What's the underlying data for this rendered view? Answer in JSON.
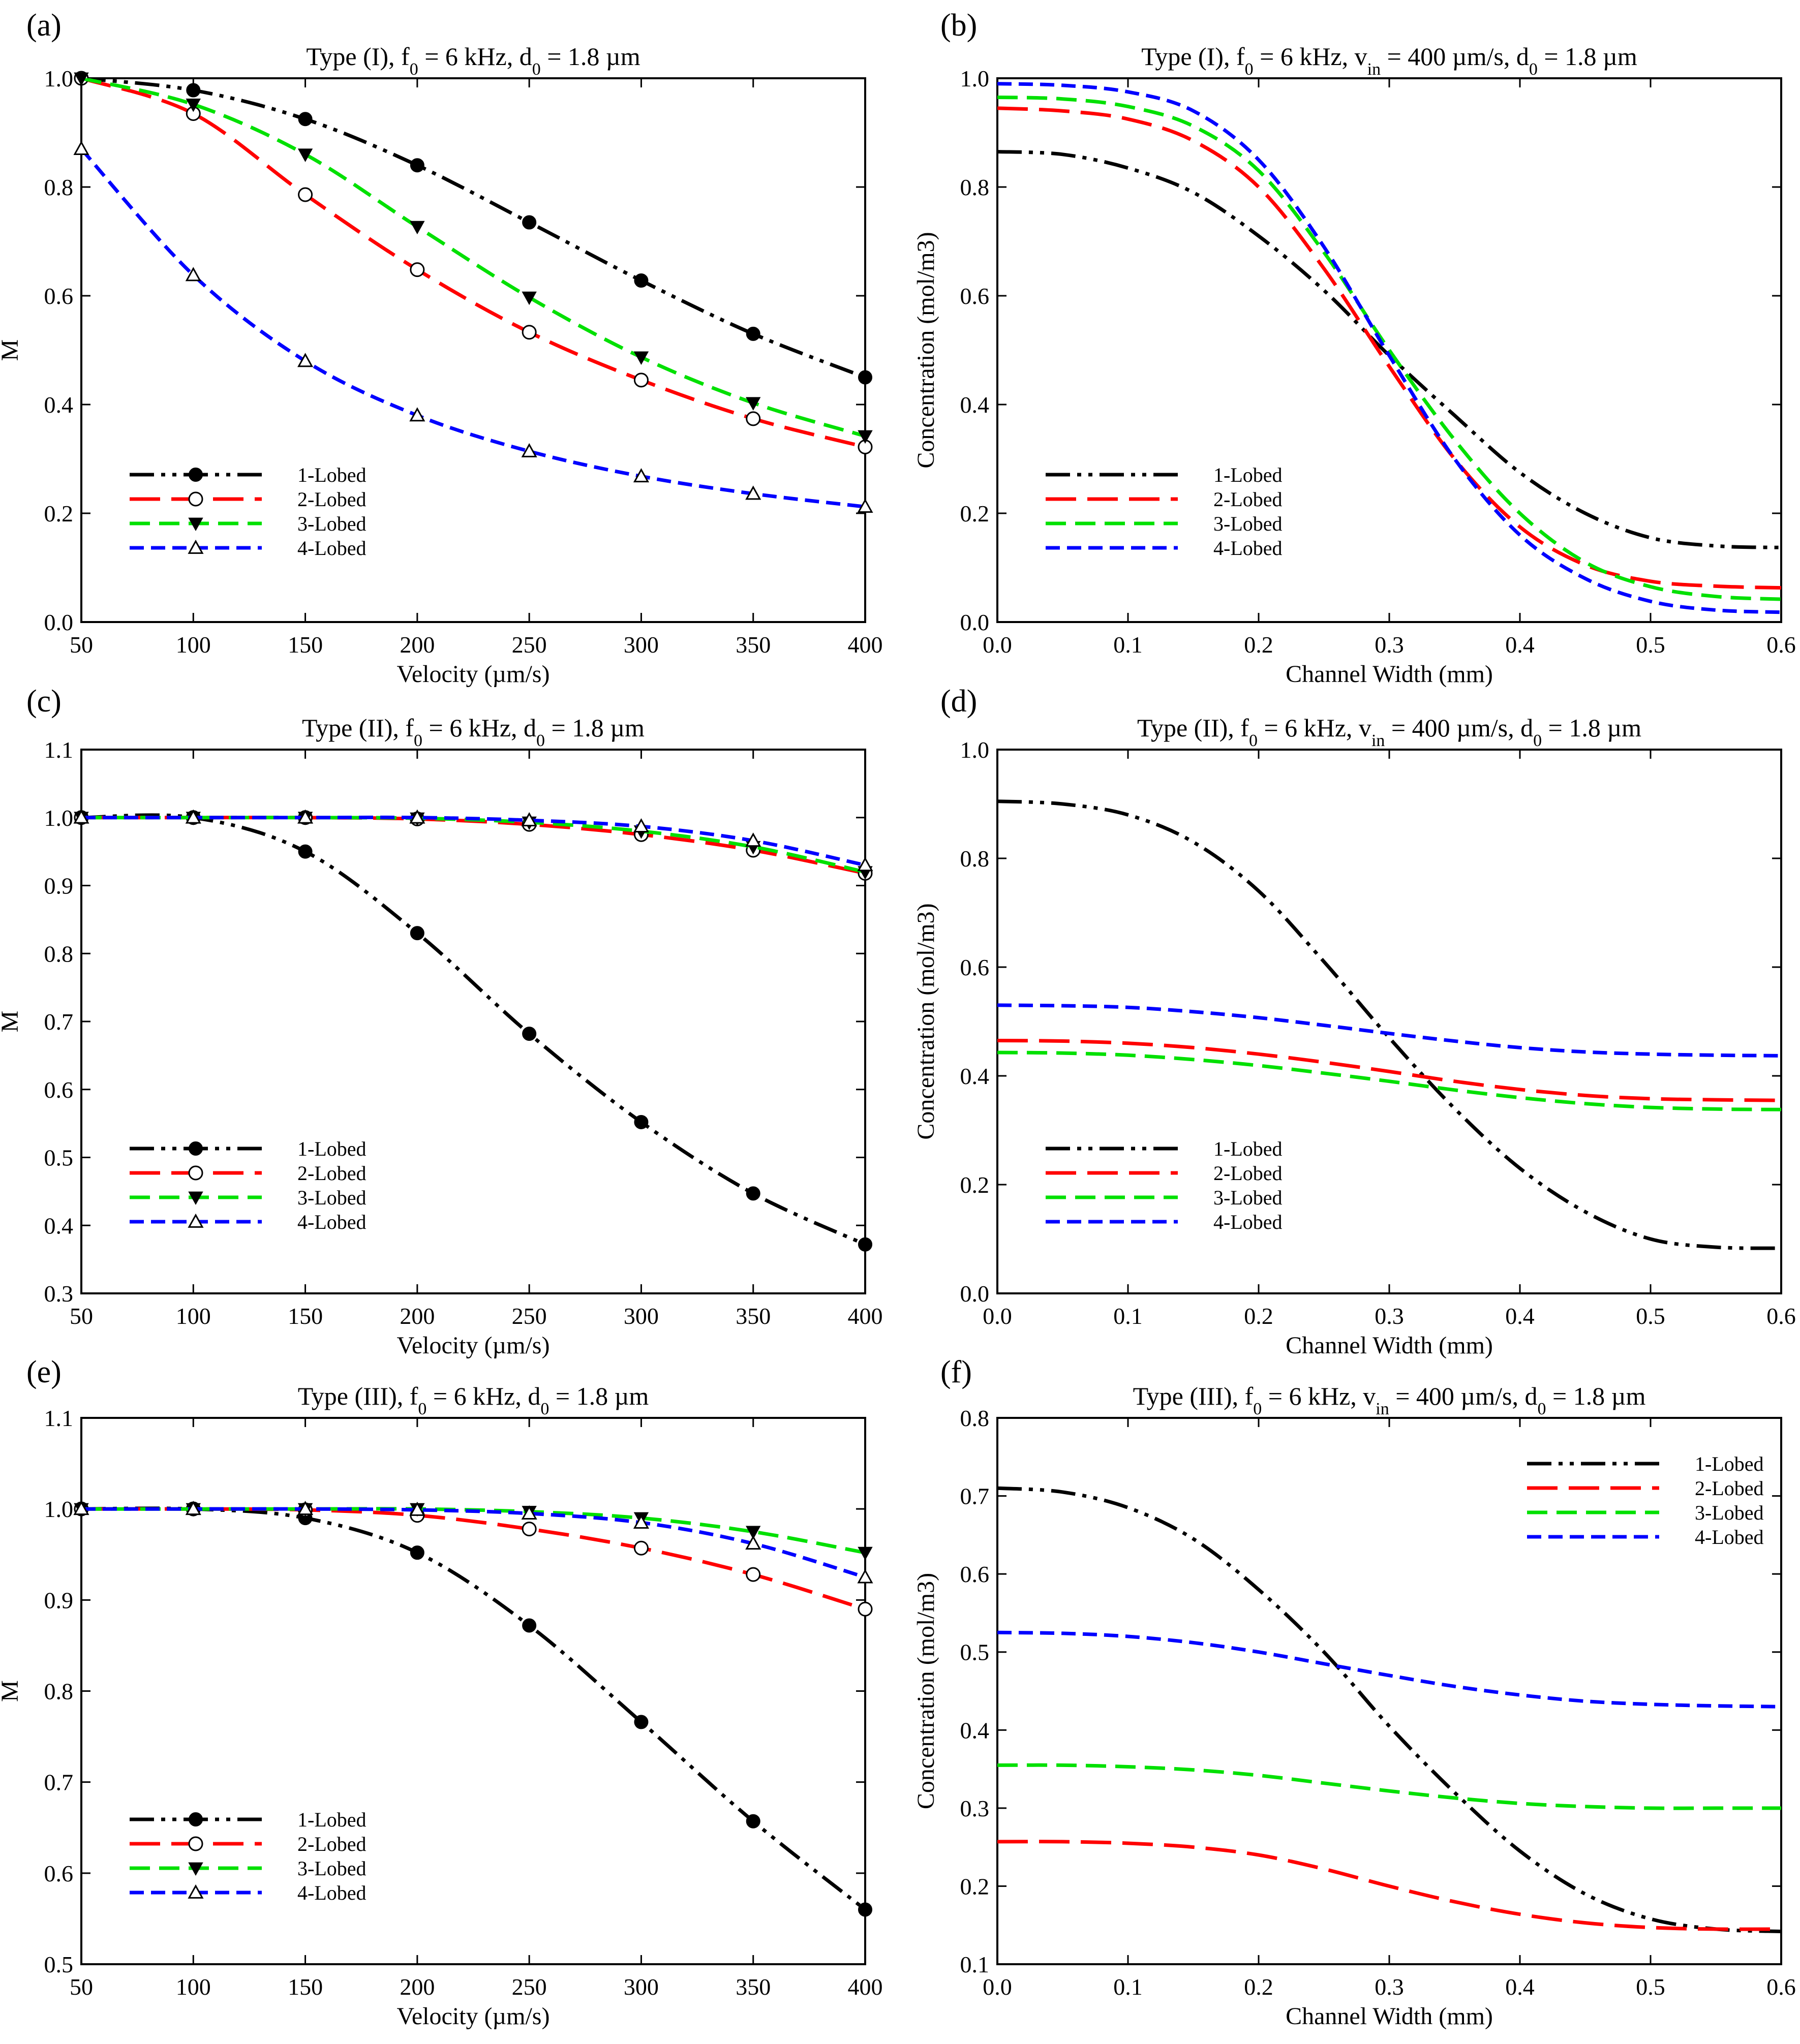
{
  "figure": {
    "colors": {
      "1-Lobed": "#000000",
      "2-Lobed": "#ff0000",
      "3-Lobed": "#00e000",
      "4-Lobed": "#0000ff"
    }
  },
  "chart_data": [
    {
      "panel_label": "(a)",
      "type": "line",
      "title": "Type (I), f0 = 6 kHz, d0 = 1.8 µm",
      "title_parts": [
        [
          "Type (I), f",
          "0",
          " = 6 kHz, d",
          "0",
          " = 1.8 µm"
        ]
      ],
      "xlabel": "Velocity (µm/s)",
      "ylabel": "M",
      "xlim": [
        50,
        400
      ],
      "ylim": [
        0.0,
        1.0
      ],
      "xticks": [
        50,
        100,
        150,
        200,
        250,
        300,
        350,
        400
      ],
      "xtick_labels": [
        "50",
        "100",
        "150",
        "200",
        "250",
        "300",
        "350",
        "400"
      ],
      "yticks": [
        0.0,
        0.2,
        0.4,
        0.6,
        0.8,
        1.0
      ],
      "ytick_labels": [
        "0.0",
        "0.2",
        "0.4",
        "0.6",
        "0.8",
        "1.0"
      ],
      "legend": "bottom-left",
      "x": [
        50,
        100,
        150,
        200,
        250,
        300,
        350,
        400
      ],
      "series": [
        {
          "name": "1-Lobed",
          "style": "dashdotdot",
          "marker": "filled-circle",
          "values": [
            1.0,
            0.978,
            0.925,
            0.84,
            0.735,
            0.628,
            0.53,
            0.45
          ]
        },
        {
          "name": "2-Lobed",
          "style": "longdash",
          "marker": "open-circle",
          "values": [
            1.0,
            0.935,
            0.786,
            0.648,
            0.533,
            0.445,
            0.374,
            0.322
          ]
        },
        {
          "name": "3-Lobed",
          "style": "dash",
          "marker": "filled-triangle-down",
          "values": [
            1.0,
            0.952,
            0.86,
            0.727,
            0.597,
            0.487,
            0.403,
            0.342
          ]
        },
        {
          "name": "4-Lobed",
          "style": "shortdash",
          "marker": "open-triangle-up",
          "values": [
            0.87,
            0.638,
            0.48,
            0.38,
            0.314,
            0.268,
            0.236,
            0.212
          ]
        }
      ]
    },
    {
      "panel_label": "(b)",
      "type": "line",
      "title": "Type (I), f0 = 6 kHz, vin = 400 µm/s, d0 = 1.8 µm",
      "title_parts": [
        [
          "Type (I), f",
          "0",
          " = 6 kHz, v",
          "in",
          " = 400 µm/s, d",
          "0",
          " = 1.8 µm"
        ]
      ],
      "xlabel": "Channel Width (mm)",
      "ylabel": "Concentration (mol/m3)",
      "xlim": [
        0.0,
        0.6
      ],
      "ylim": [
        0.0,
        1.0
      ],
      "xticks": [
        0.0,
        0.1,
        0.2,
        0.3,
        0.4,
        0.5,
        0.6
      ],
      "xtick_labels": [
        "0.0",
        "0.1",
        "0.2",
        "0.3",
        "0.4",
        "0.5",
        "0.6"
      ],
      "yticks": [
        0.0,
        0.2,
        0.4,
        0.6,
        0.8,
        1.0
      ],
      "ytick_labels": [
        "0.0",
        "0.2",
        "0.4",
        "0.6",
        "0.8",
        "1.0"
      ],
      "legend": "bottom-left",
      "x": [
        0.0,
        0.05,
        0.1,
        0.15,
        0.2,
        0.25,
        0.3,
        0.35,
        0.4,
        0.45,
        0.5,
        0.55,
        0.6
      ],
      "series": [
        {
          "name": "1-Lobed",
          "style": "dashdotdot",
          "values": [
            0.865,
            0.86,
            0.835,
            0.79,
            0.71,
            0.61,
            0.49,
            0.38,
            0.275,
            0.2,
            0.155,
            0.14,
            0.137
          ]
        },
        {
          "name": "2-Lobed",
          "style": "longdash",
          "values": [
            0.945,
            0.94,
            0.925,
            0.885,
            0.8,
            0.65,
            0.47,
            0.3,
            0.175,
            0.105,
            0.075,
            0.066,
            0.063
          ]
        },
        {
          "name": "3-Lobed",
          "style": "dash",
          "values": [
            0.965,
            0.962,
            0.948,
            0.912,
            0.83,
            0.68,
            0.5,
            0.335,
            0.2,
            0.11,
            0.065,
            0.047,
            0.042
          ]
        },
        {
          "name": "4-Lobed",
          "style": "shortdash",
          "values": [
            0.99,
            0.987,
            0.975,
            0.94,
            0.85,
            0.69,
            0.49,
            0.3,
            0.16,
            0.08,
            0.038,
            0.022,
            0.018
          ]
        }
      ]
    },
    {
      "panel_label": "(c)",
      "type": "line",
      "title": "Type (II), f0 = 6 kHz, d0 = 1.8 µm",
      "title_parts": [
        [
          "Type (II), f",
          "0",
          " = 6 kHz, d",
          "0",
          " = 1.8 µm"
        ]
      ],
      "xlabel": "Velocity (µm/s)",
      "ylabel": "M",
      "xlim": [
        50,
        400
      ],
      "ylim": [
        0.3,
        1.1
      ],
      "xticks": [
        50,
        100,
        150,
        200,
        250,
        300,
        350,
        400
      ],
      "xtick_labels": [
        "50",
        "100",
        "150",
        "200",
        "250",
        "300",
        "350",
        "400"
      ],
      "yticks": [
        0.3,
        0.4,
        0.5,
        0.6,
        0.7,
        0.8,
        0.9,
        1.0,
        1.1
      ],
      "ytick_labels": [
        "0.3",
        "0.4",
        "0.5",
        "0.6",
        "0.7",
        "0.8",
        "0.9",
        "1.0",
        "1.1"
      ],
      "legend": "bottom-left",
      "x": [
        50,
        100,
        150,
        200,
        250,
        300,
        350,
        400
      ],
      "series": [
        {
          "name": "1-Lobed",
          "style": "dashdotdot",
          "marker": "filled-circle",
          "values": [
            1.0,
            1.0,
            0.95,
            0.83,
            0.682,
            0.552,
            0.447,
            0.372
          ]
        },
        {
          "name": "2-Lobed",
          "style": "longdash",
          "marker": "open-circle",
          "values": [
            1.0,
            1.0,
            1.0,
            0.998,
            0.99,
            0.975,
            0.952,
            0.918
          ]
        },
        {
          "name": "3-Lobed",
          "style": "dash",
          "marker": "filled-triangle-down",
          "values": [
            1.0,
            1.0,
            1.0,
            0.999,
            0.993,
            0.98,
            0.957,
            0.92
          ]
        },
        {
          "name": "4-Lobed",
          "style": "shortdash",
          "marker": "open-triangle-up",
          "values": [
            1.0,
            1.0,
            1.0,
            1.0,
            0.996,
            0.987,
            0.966,
            0.93
          ]
        }
      ]
    },
    {
      "panel_label": "(d)",
      "type": "line",
      "title": "Type (II), f0 = 6 kHz, vin = 400 µm/s, d0 = 1.8 µm",
      "title_parts": [
        [
          "Type (II), f",
          "0",
          " = 6 kHz, v",
          "in",
          " = 400 µm/s, d",
          "0",
          " = 1.8 µm"
        ]
      ],
      "xlabel": "Channel Width (mm)",
      "ylabel": "Concentration (mol/m3)",
      "xlim": [
        0.0,
        0.6
      ],
      "ylim": [
        0.0,
        1.0
      ],
      "xticks": [
        0.0,
        0.1,
        0.2,
        0.3,
        0.4,
        0.5,
        0.6
      ],
      "xtick_labels": [
        "0.0",
        "0.1",
        "0.2",
        "0.3",
        "0.4",
        "0.5",
        "0.6"
      ],
      "yticks": [
        0.0,
        0.2,
        0.4,
        0.6,
        0.8,
        1.0
      ],
      "ytick_labels": [
        "0.0",
        "0.2",
        "0.4",
        "0.6",
        "0.8",
        "1.0"
      ],
      "legend": "bottom-left",
      "x": [
        0.0,
        0.05,
        0.1,
        0.15,
        0.2,
        0.25,
        0.3,
        0.35,
        0.4,
        0.45,
        0.5,
        0.55,
        0.6
      ],
      "series": [
        {
          "name": "1-Lobed",
          "style": "dashdotdot",
          "values": [
            0.905,
            0.9,
            0.88,
            0.83,
            0.74,
            0.61,
            0.47,
            0.34,
            0.23,
            0.15,
            0.1,
            0.085,
            0.083
          ]
        },
        {
          "name": "2-Lobed",
          "style": "longdash",
          "values": [
            0.465,
            0.464,
            0.46,
            0.452,
            0.44,
            0.425,
            0.408,
            0.39,
            0.375,
            0.364,
            0.358,
            0.356,
            0.355
          ]
        },
        {
          "name": "3-Lobed",
          "style": "dash",
          "values": [
            0.443,
            0.442,
            0.438,
            0.43,
            0.419,
            0.405,
            0.39,
            0.374,
            0.36,
            0.349,
            0.342,
            0.339,
            0.338
          ]
        },
        {
          "name": "4-Lobed",
          "style": "shortdash",
          "values": [
            0.53,
            0.529,
            0.526,
            0.518,
            0.507,
            0.493,
            0.478,
            0.464,
            0.452,
            0.444,
            0.44,
            0.438,
            0.437
          ]
        }
      ]
    },
    {
      "panel_label": "(e)",
      "type": "line",
      "title": "Type (III), f0 = 6 kHz, d0 = 1.8 µm",
      "title_parts": [
        [
          "Type (III), f",
          "0",
          " = 6 kHz, d",
          "0",
          " = 1.8 µm"
        ]
      ],
      "xlabel": "Velocity (µm/s)",
      "ylabel": "M",
      "xlim": [
        50,
        400
      ],
      "ylim": [
        0.5,
        1.1
      ],
      "xticks": [
        50,
        100,
        150,
        200,
        250,
        300,
        350,
        400
      ],
      "xtick_labels": [
        "50",
        "100",
        "150",
        "200",
        "250",
        "300",
        "350",
        "400"
      ],
      "yticks": [
        0.5,
        0.6,
        0.7,
        0.8,
        0.9,
        1.0,
        1.1
      ],
      "ytick_labels": [
        "0.5",
        "0.6",
        "0.7",
        "0.8",
        "0.9",
        "1.0",
        "1.1"
      ],
      "legend": "bottom-left",
      "x": [
        50,
        100,
        150,
        200,
        250,
        300,
        350,
        400
      ],
      "series": [
        {
          "name": "1-Lobed",
          "style": "dashdotdot",
          "marker": "filled-circle",
          "values": [
            1.0,
            1.0,
            0.99,
            0.952,
            0.872,
            0.766,
            0.657,
            0.56
          ]
        },
        {
          "name": "2-Lobed",
          "style": "longdash",
          "marker": "open-circle",
          "values": [
            1.0,
            1.0,
            0.999,
            0.993,
            0.978,
            0.957,
            0.928,
            0.89
          ]
        },
        {
          "name": "3-Lobed",
          "style": "dash",
          "marker": "filled-triangle-down",
          "values": [
            1.0,
            1.0,
            1.0,
            1.0,
            0.997,
            0.99,
            0.975,
            0.952
          ]
        },
        {
          "name": "4-Lobed",
          "style": "shortdash",
          "marker": "open-triangle-up",
          "values": [
            1.0,
            1.0,
            1.0,
            0.999,
            0.995,
            0.985,
            0.962,
            0.925
          ]
        }
      ]
    },
    {
      "panel_label": "(f)",
      "type": "line",
      "title": "Type (III), f0 = 6 kHz, vin = 400 µm/s, d0 = 1.8 µm",
      "title_parts": [
        [
          "Type (III), f",
          "0",
          " = 6 kHz, v",
          "in",
          " = 400 µm/s, d",
          "0",
          " = 1.8 µm"
        ]
      ],
      "xlabel": "Channel Width (mm)",
      "ylabel": "Concentration (mol/m3)",
      "xlim": [
        0.0,
        0.6
      ],
      "ylim": [
        0.1,
        0.8
      ],
      "xticks": [
        0.0,
        0.1,
        0.2,
        0.3,
        0.4,
        0.5,
        0.6
      ],
      "xtick_labels": [
        "0.0",
        "0.1",
        "0.2",
        "0.3",
        "0.4",
        "0.5",
        "0.6"
      ],
      "yticks": [
        0.1,
        0.2,
        0.3,
        0.4,
        0.5,
        0.6,
        0.7,
        0.8
      ],
      "ytick_labels": [
        "0.1",
        "0.2",
        "0.3",
        "0.4",
        "0.5",
        "0.6",
        "0.7",
        "0.8"
      ],
      "legend": "top-right",
      "x": [
        0.0,
        0.05,
        0.1,
        0.15,
        0.2,
        0.25,
        0.3,
        0.35,
        0.4,
        0.45,
        0.5,
        0.55,
        0.6
      ],
      "series": [
        {
          "name": "1-Lobed",
          "style": "dashdotdot",
          "values": [
            0.71,
            0.705,
            0.685,
            0.645,
            0.58,
            0.5,
            0.405,
            0.32,
            0.245,
            0.19,
            0.158,
            0.145,
            0.142
          ]
        },
        {
          "name": "2-Lobed",
          "style": "longdash",
          "values": [
            0.257,
            0.257,
            0.255,
            0.25,
            0.24,
            0.222,
            0.2,
            0.18,
            0.164,
            0.153,
            0.147,
            0.145,
            0.145
          ]
        },
        {
          "name": "3-Lobed",
          "style": "dash",
          "values": [
            0.355,
            0.355,
            0.353,
            0.349,
            0.342,
            0.332,
            0.322,
            0.313,
            0.306,
            0.302,
            0.3,
            0.3,
            0.3
          ]
        },
        {
          "name": "4-Lobed",
          "style": "shortdash",
          "values": [
            0.525,
            0.524,
            0.52,
            0.512,
            0.5,
            0.485,
            0.47,
            0.456,
            0.445,
            0.437,
            0.433,
            0.431,
            0.43
          ]
        }
      ]
    }
  ]
}
